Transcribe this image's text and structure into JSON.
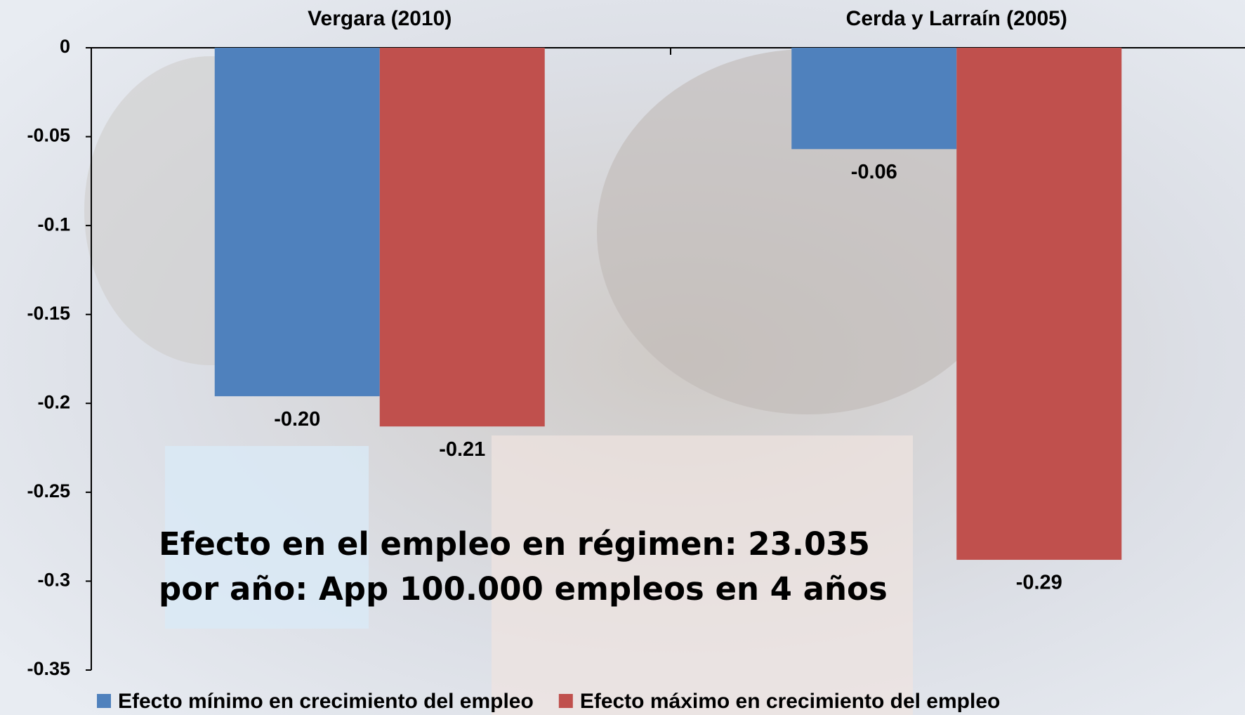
{
  "chart_data": {
    "type": "bar",
    "categories": [
      "Vergara (2010)",
      "Cerda y Larraín (2005)"
    ],
    "series": [
      {
        "name": "Efecto mínimo en crecimiento del empleo",
        "color": "#4f81bd",
        "values": [
          -0.196,
          -0.057
        ],
        "value_labels": [
          "-0.20",
          "-0.06"
        ]
      },
      {
        "name": "Efecto máximo en crecimiento del empleo",
        "color": "#c0504d",
        "values": [
          -0.213,
          -0.288
        ],
        "value_labels": [
          "-0.21",
          "-0.29"
        ]
      }
    ],
    "ylim": [
      0,
      -0.35
    ],
    "yticks": [
      0,
      -0.05,
      -0.1,
      -0.15,
      -0.2,
      -0.25,
      -0.3,
      -0.35
    ],
    "annotation": [
      "Efecto en el empleo en régimen: 23.035",
      "por año: App 100.000 empleos en 4 años"
    ],
    "legend": "bottom"
  }
}
